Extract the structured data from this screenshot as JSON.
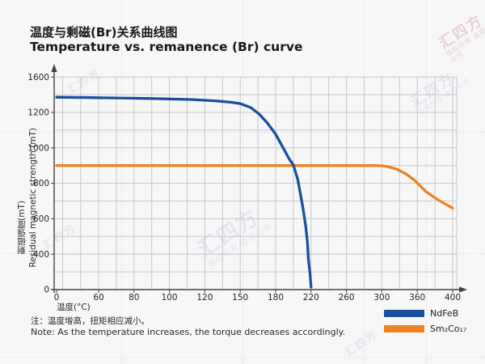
{
  "header": {
    "title_zh": "温度与剩磁(Br)关系曲线图",
    "title_en": "Temperature vs. remanence (Br) curve"
  },
  "chart_data": {
    "type": "line",
    "xlabel": "温度(°C)",
    "ylabel_zh": "剩磁强度(mT)",
    "ylabel_en": "Residual magnetic strength (mT)",
    "x_tick_labels": [
      "0",
      "60",
      "80",
      "100",
      "120",
      "150",
      "180",
      "220",
      "260",
      "300",
      "360",
      "400"
    ],
    "y_tick_labels": [
      "0",
      "400",
      "600",
      "800",
      "1000",
      "1200",
      "1600"
    ],
    "axis_note": "tick labels are evenly spaced on screen but non-uniform in value",
    "grid": true,
    "legend_position": "below-plot-right",
    "series": [
      {
        "name": "NdFeB",
        "color": "#1b4f9c",
        "points": [
          [
            0,
            1372
          ],
          [
            50,
            1367
          ],
          [
            90,
            1357
          ],
          [
            112,
            1346
          ],
          [
            130,
            1330
          ],
          [
            142,
            1315
          ],
          [
            150,
            1300
          ],
          [
            159,
            1255
          ],
          [
            166,
            1191
          ],
          [
            173,
            1140
          ],
          [
            180,
            1077
          ],
          [
            188,
            1004
          ],
          [
            195,
            940
          ],
          [
            200,
            903
          ],
          [
            205,
            821
          ],
          [
            208,
            739
          ],
          [
            211,
            657
          ],
          [
            214,
            557
          ],
          [
            216,
            465
          ],
          [
            217,
            347
          ],
          [
            219,
            164
          ],
          [
            220,
            27
          ]
        ]
      },
      {
        "name": "Sm₂Co₁₇",
        "color": "#ef8222",
        "points": [
          [
            0,
            900
          ],
          [
            80,
            900
          ],
          [
            160,
            900
          ],
          [
            240,
            900
          ],
          [
            290,
            900
          ],
          [
            300,
            899
          ],
          [
            310,
            894
          ],
          [
            325,
            880
          ],
          [
            340,
            855
          ],
          [
            355,
            818
          ],
          [
            370,
            752
          ],
          [
            385,
            702
          ],
          [
            400,
            660
          ]
        ]
      }
    ]
  },
  "note": {
    "zh": "注：温度增高，扭矩相应减小。",
    "en": "Note: As the temperature increases, the torque decreases accordingly."
  },
  "watermark": {
    "brand": "汇四方",
    "caption": "版权所有 盗图必究"
  }
}
